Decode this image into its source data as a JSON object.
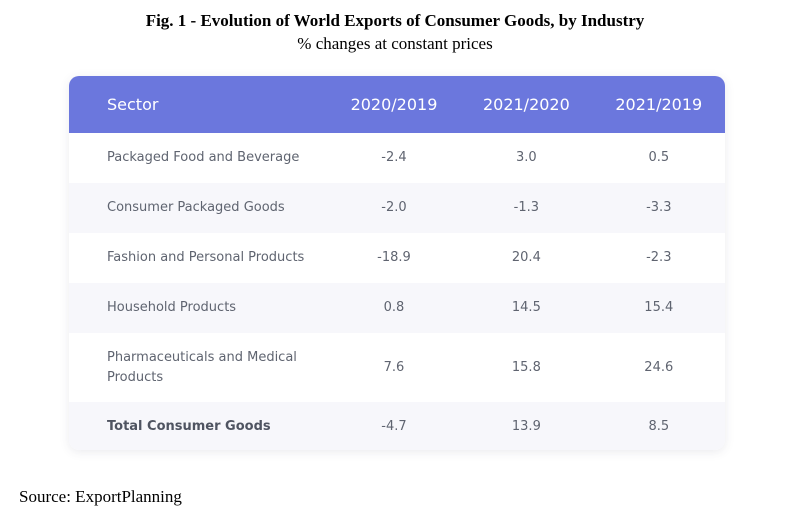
{
  "title": "Fig. 1 - Evolution of World Exports of Consumer Goods, by Industry",
  "subtitle": "% changes at constant prices",
  "source": "Source: ExportPlanning",
  "colors": {
    "header_bg": "#6b77dd",
    "header_text": "#ffffff",
    "row_alt_bg": "#f7f7fb",
    "body_text": "#5f6470"
  },
  "chart_data": {
    "type": "table",
    "columns": [
      "Sector",
      "2020/2019",
      "2021/2020",
      "2021/2019"
    ],
    "rows": [
      {
        "sector": "Packaged Food and Beverage",
        "v2020_2019": "-2.4",
        "v2021_2020": "3.0",
        "v2021_2019": "0.5"
      },
      {
        "sector": "Consumer Packaged Goods",
        "v2020_2019": "-2.0",
        "v2021_2020": "-1.3",
        "v2021_2019": "-3.3"
      },
      {
        "sector": "Fashion and Personal Products",
        "v2020_2019": "-18.9",
        "v2021_2020": "20.4",
        "v2021_2019": "-2.3"
      },
      {
        "sector": "Household Products",
        "v2020_2019": "0.8",
        "v2021_2020": "14.5",
        "v2021_2019": "15.4"
      },
      {
        "sector": "Pharmaceuticals and Medical Products",
        "v2020_2019": "7.6",
        "v2021_2020": "15.8",
        "v2021_2019": "24.6"
      },
      {
        "sector": "Total Consumer Goods",
        "v2020_2019": "-4.7",
        "v2021_2020": "13.9",
        "v2021_2019": "8.5"
      }
    ]
  }
}
